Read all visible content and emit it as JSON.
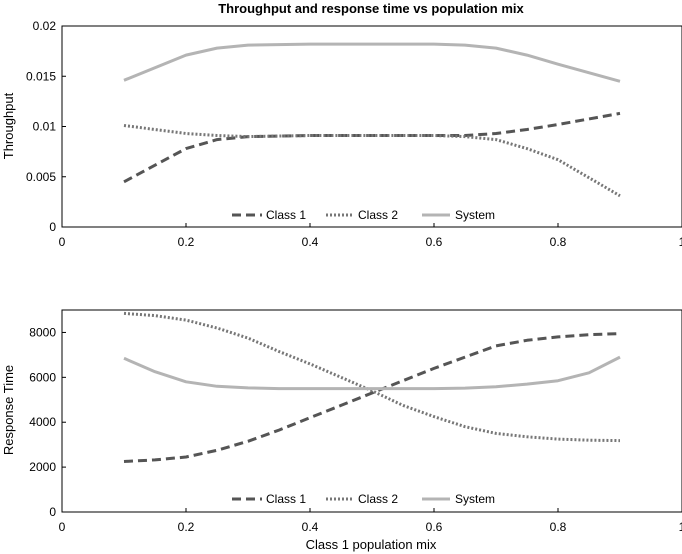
{
  "chart_data": [
    {
      "type": "line",
      "title": "Throughput and response time vs population mix",
      "xlabel": "",
      "ylabel": "Throughput",
      "xlim": [
        0,
        1
      ],
      "ylim": [
        0,
        0.02
      ],
      "xticks": [
        "0",
        "0.2",
        "0.4",
        "0.6",
        "0.8",
        "1"
      ],
      "yticks": [
        "0",
        "0.005",
        "0.01",
        "0.015",
        "0.02"
      ],
      "legend_position": "bottom-center",
      "x": [
        0.1,
        0.2,
        0.25,
        0.3,
        0.4,
        0.5,
        0.6,
        0.65,
        0.7,
        0.75,
        0.8,
        0.9
      ],
      "series": [
        {
          "name": "Class 1",
          "style": "dashed",
          "color": "#555555",
          "values": [
            0.0045,
            0.0078,
            0.0087,
            0.009,
            0.0091,
            0.0091,
            0.0091,
            0.0091,
            0.0093,
            0.0097,
            0.0102,
            0.0113
          ]
        },
        {
          "name": "Class 2",
          "style": "dotted",
          "color": "#777777",
          "values": [
            0.0101,
            0.0093,
            0.0091,
            0.009,
            0.0091,
            0.0091,
            0.0091,
            0.009,
            0.0087,
            0.0078,
            0.0067,
            0.0031
          ]
        },
        {
          "name": "System",
          "style": "solid",
          "color": "#b4b4b4",
          "values": [
            0.0146,
            0.0171,
            0.0178,
            0.0181,
            0.0182,
            0.0182,
            0.0182,
            0.0181,
            0.0178,
            0.0171,
            0.0162,
            0.0145
          ]
        }
      ]
    },
    {
      "type": "line",
      "title": "",
      "xlabel": "Class 1 population mix",
      "ylabel": "Response Time",
      "xlim": [
        0,
        1
      ],
      "ylim": [
        0,
        9000
      ],
      "xticks": [
        "0",
        "0.2",
        "0.4",
        "0.6",
        "0.8",
        "1"
      ],
      "yticks": [
        "0",
        "2000",
        "4000",
        "6000",
        "8000"
      ],
      "legend_position": "bottom-center",
      "x": [
        0.1,
        0.15,
        0.2,
        0.25,
        0.3,
        0.35,
        0.4,
        0.45,
        0.5,
        0.55,
        0.6,
        0.65,
        0.7,
        0.75,
        0.8,
        0.85,
        0.9
      ],
      "series": [
        {
          "name": "Class 1",
          "style": "dashed",
          "color": "#555555",
          "values": [
            2250,
            2320,
            2450,
            2750,
            3150,
            3650,
            4200,
            4750,
            5300,
            5850,
            6400,
            6900,
            7400,
            7650,
            7800,
            7900,
            7950
          ]
        },
        {
          "name": "Class 2",
          "style": "dotted",
          "color": "#777777",
          "values": [
            8850,
            8750,
            8550,
            8200,
            7750,
            7150,
            6600,
            6000,
            5400,
            4750,
            4250,
            3800,
            3500,
            3350,
            3250,
            3200,
            3180
          ]
        },
        {
          "name": "System",
          "style": "solid",
          "color": "#b4b4b4",
          "values": [
            6850,
            6250,
            5800,
            5600,
            5530,
            5500,
            5500,
            5500,
            5500,
            5500,
            5500,
            5520,
            5580,
            5700,
            5850,
            6200,
            6900
          ]
        }
      ]
    }
  ]
}
